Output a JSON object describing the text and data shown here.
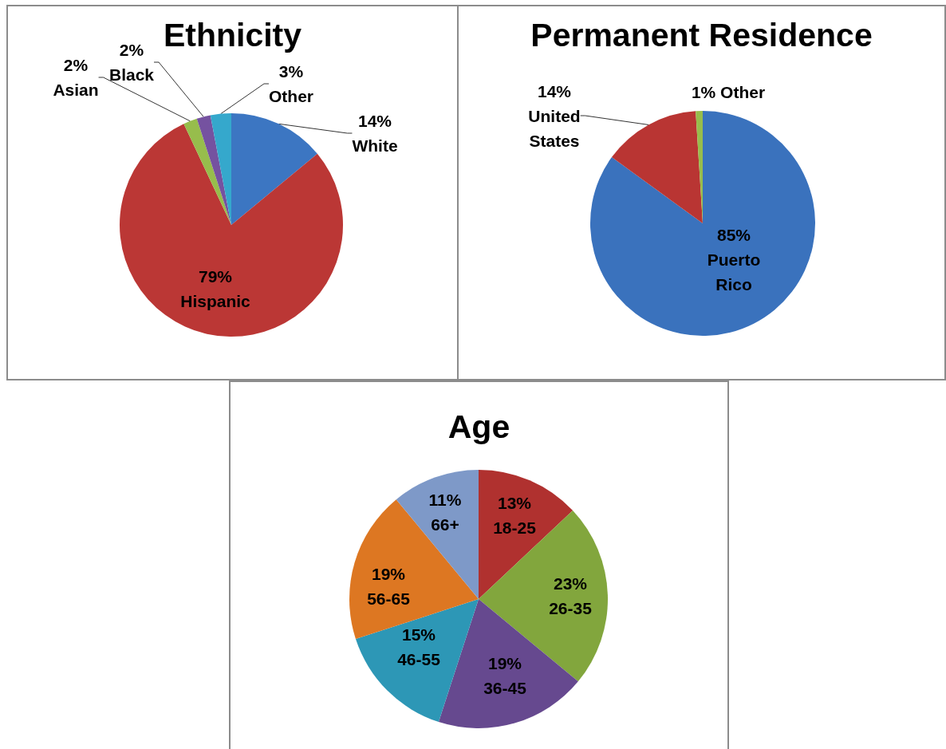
{
  "chart_data": [
    {
      "type": "pie",
      "title": "Ethnicity",
      "categories": [
        "White",
        "Hispanic",
        "Asian",
        "Black",
        "Other"
      ],
      "values": [
        14,
        79,
        2,
        2,
        3
      ],
      "value_labels": [
        "14%",
        "79%",
        "2%",
        "2%",
        "3%"
      ],
      "colors": [
        "#3c76c2",
        "#bb3735",
        "#97bd4c",
        "#7552a0",
        "#35a8cc"
      ]
    },
    {
      "type": "pie",
      "title": "Permanent Residence",
      "categories": [
        "Puerto Rico",
        "United States",
        "Other"
      ],
      "values": [
        85,
        14,
        1
      ],
      "value_labels": [
        "85%",
        "14%",
        "1%"
      ],
      "colors": [
        "#3a72bd",
        "#b93533",
        "#97bd4c"
      ]
    },
    {
      "type": "pie",
      "title": "Age",
      "categories": [
        "18-25",
        "26-35",
        "36-45",
        "46-55",
        "56-65",
        "66+"
      ],
      "values": [
        13,
        23,
        19,
        15,
        19,
        11
      ],
      "value_labels": [
        "13%",
        "23%",
        "19%",
        "15%",
        "19%",
        "11%"
      ],
      "colors": [
        "#b0312f",
        "#82a63d",
        "#66498f",
        "#2d97b6",
        "#dd7722",
        "#7e99c8"
      ]
    }
  ]
}
